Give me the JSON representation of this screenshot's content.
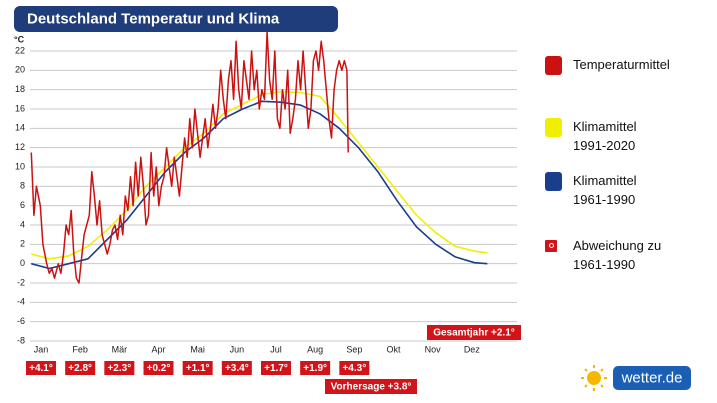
{
  "chart_data": {
    "type": "line",
    "title": "Deutschland Temperatur und Klima",
    "y_unit": "°C",
    "categories": [
      "Jan",
      "Feb",
      "Mär",
      "Apr",
      "Mai",
      "Jun",
      "Jul",
      "Aug",
      "Sep",
      "Okt",
      "Nov",
      "Dez"
    ],
    "xlim": [
      0,
      378
    ],
    "ylim": [
      -8,
      22
    ],
    "yticks": [
      -8,
      -6,
      -4,
      -2,
      0,
      2,
      4,
      6,
      8,
      10,
      12,
      14,
      16,
      18,
      20,
      22
    ],
    "grid": true,
    "series": [
      {
        "name": "Temperaturmittel",
        "color": "#cc1111",
        "x": [
          1,
          3,
          5,
          8,
          10,
          13,
          15,
          17,
          19,
          22,
          24,
          26,
          28,
          30,
          32,
          34,
          36,
          38,
          40,
          42,
          44,
          46,
          48,
          50,
          52,
          54,
          56,
          58,
          60,
          62,
          64,
          66,
          68,
          70,
          72,
          74,
          76,
          78,
          80,
          82,
          84,
          86,
          88,
          90,
          92,
          94,
          96,
          98,
          100,
          102,
          104,
          106,
          108,
          110,
          112,
          114,
          116,
          118,
          120,
          122,
          124,
          126,
          128,
          130,
          132,
          134,
          136,
          138,
          140,
          142,
          144,
          146,
          148,
          150,
          152,
          154,
          156,
          158,
          160,
          162,
          164,
          166,
          168,
          170,
          172,
          174,
          176,
          178,
          180,
          182,
          184,
          186,
          188,
          190,
          192,
          194,
          196,
          198,
          200,
          202,
          204,
          206,
          208,
          210,
          212,
          214,
          216,
          218,
          220,
          222,
          224,
          226,
          228,
          230,
          232,
          234,
          236,
          238,
          240,
          242,
          244,
          246,
          247
        ],
        "values": [
          11.5,
          5,
          8,
          6,
          2,
          0,
          -1,
          -0.5,
          -1.5,
          0,
          -1,
          1,
          4,
          3,
          5.5,
          1,
          -1.5,
          -2,
          0.5,
          3,
          4,
          5,
          9.5,
          7,
          4,
          6.5,
          3,
          2,
          1,
          2,
          3.5,
          4,
          2.5,
          5,
          3,
          7,
          5.5,
          9,
          6,
          10.5,
          7,
          11,
          8,
          4,
          5,
          11.5,
          7,
          10,
          6,
          8,
          9,
          12,
          10,
          8,
          11,
          9,
          7,
          10,
          13,
          11,
          15,
          12,
          16,
          13.5,
          11,
          13,
          15,
          12,
          14,
          16.5,
          14,
          16,
          20,
          17,
          15,
          19,
          21,
          17,
          23,
          18,
          16,
          21,
          19,
          17,
          22,
          18,
          20,
          16,
          18,
          17,
          24,
          19,
          17,
          22,
          15,
          14,
          18,
          16,
          20,
          13.5,
          15,
          17,
          21,
          18,
          22,
          18,
          14,
          16,
          21,
          22,
          20,
          23,
          21,
          18,
          15,
          13,
          18,
          20,
          21,
          20,
          21,
          20,
          11.5
        ]
      },
      {
        "name": "Klimamittel\n1991-2020",
        "color": "#f2ee00",
        "x": [
          1,
          15,
          30,
          45,
          60,
          75,
          90,
          105,
          120,
          135,
          150,
          165,
          180,
          195,
          210,
          225,
          240,
          255,
          270,
          285,
          300,
          315,
          330,
          345,
          355
        ],
        "values": [
          1,
          0.5,
          0.8,
          1.8,
          3.5,
          5.5,
          8,
          10,
          12,
          13.5,
          15.5,
          16.5,
          17.5,
          17.8,
          17.7,
          17.3,
          15,
          12.5,
          10,
          7.5,
          5,
          3.2,
          1.8,
          1.3,
          1.1
        ]
      },
      {
        "name": "Klimamittel\n1961-1990",
        "color": "#1a3d8c",
        "x": [
          1,
          15,
          30,
          45,
          60,
          75,
          90,
          105,
          120,
          135,
          150,
          165,
          180,
          195,
          210,
          225,
          240,
          255,
          270,
          285,
          300,
          315,
          330,
          345,
          355
        ],
        "values": [
          0,
          -0.5,
          0,
          0.5,
          2.5,
          4.5,
          7,
          9.5,
          11.5,
          13,
          15,
          16,
          16.8,
          16.7,
          16.4,
          15.5,
          14,
          12,
          9.5,
          6.5,
          3.8,
          2,
          0.7,
          0.1,
          0
        ]
      }
    ],
    "deviation_legend": "Abweichung zu\n1961-1990",
    "deviation_labels": [
      "+4.1°",
      "+2.8°",
      "+2.3°",
      "+0.2°",
      "+1.1°",
      "+3.4°",
      "+1.7°",
      "+1.9°",
      "+4.3°"
    ],
    "annual_label": "Gesamtjahr +2.1°",
    "forecast_label": "Vorhersage +3.8°",
    "logo": "wetter.de"
  }
}
